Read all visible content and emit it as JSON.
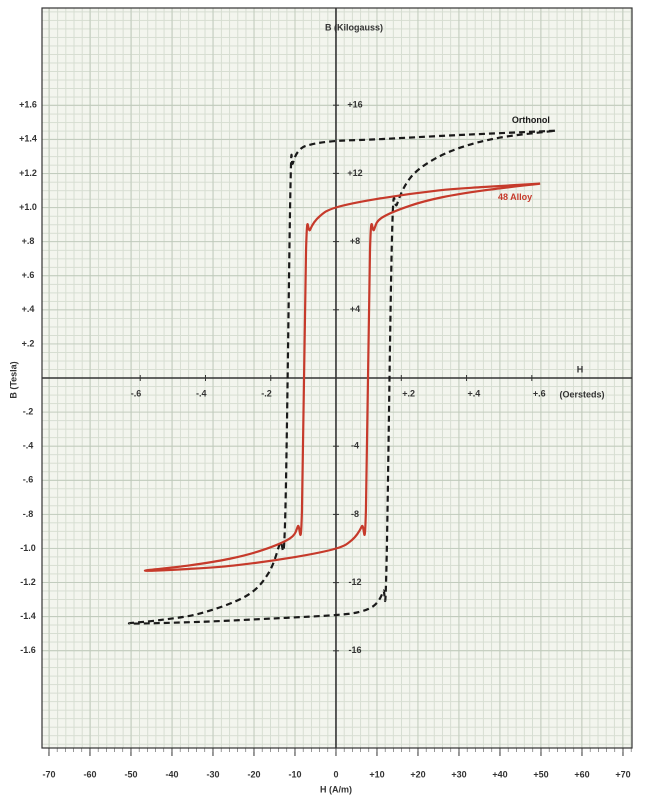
{
  "chart_data": {
    "type": "line",
    "x_label": "H (A/m)",
    "x2_label": "H",
    "x2_unit": "(Oersteds)",
    "y_label": "B (Tesla)",
    "y2_label": "B (Kilogauss)",
    "grid": true,
    "xlim": [
      -71.7,
      72.2
    ],
    "xticks": [
      -70,
      -60,
      -50,
      -40,
      -30,
      -20,
      -10,
      0,
      {
        "value": 10,
        "label": "+10"
      },
      {
        "value": 20,
        "label": "+20"
      },
      {
        "value": 30,
        "label": "+30"
      },
      {
        "value": 40,
        "label": "+40"
      },
      {
        "value": 50,
        "label": "+50"
      },
      {
        "value": 60,
        "label": "+60"
      },
      {
        "value": 70,
        "label": "+70"
      }
    ],
    "x2lim": [
      -0.901,
      0.907
    ],
    "x2ticks": [
      {
        "value": -0.6,
        "label": "-.6"
      },
      {
        "value": -0.4,
        "label": "-.4"
      },
      {
        "value": -0.2,
        "label": "-.2"
      },
      {
        "value": 0.2,
        "label": "+.2"
      },
      {
        "value": 0.4,
        "label": "+.4"
      },
      {
        "value": 0.6,
        "label": "+.6"
      }
    ],
    "ylim": [
      -2.17,
      2.17
    ],
    "yticks": [
      {
        "value": 1.6,
        "label": "+1.6"
      },
      {
        "value": 1.4,
        "label": "+1.4"
      },
      {
        "value": 1.2,
        "label": "+1.2"
      },
      {
        "value": 1.0,
        "label": "+1.0"
      },
      {
        "value": 0.8,
        "label": "+.8"
      },
      {
        "value": 0.6,
        "label": "+.6"
      },
      {
        "value": 0.4,
        "label": "+.4"
      },
      {
        "value": 0.2,
        "label": "+.2"
      },
      {
        "value": -0.2,
        "label": "-.2"
      },
      {
        "value": -0.4,
        "label": "-.4"
      },
      {
        "value": -0.6,
        "label": "-.6"
      },
      {
        "value": -0.8,
        "label": "-.8"
      },
      {
        "value": -1.0,
        "label": "-1.0"
      },
      {
        "value": -1.2,
        "label": "-1.2"
      },
      {
        "value": -1.4,
        "label": "-1.4"
      },
      {
        "value": -1.6,
        "label": "-1.6"
      }
    ],
    "y2lim": [
      -21.7,
      21.7
    ],
    "y2ticks": [
      {
        "value": 16,
        "label": "+16"
      },
      {
        "value": 12,
        "label": "+12"
      },
      {
        "value": 8,
        "label": "+8"
      },
      {
        "value": 4,
        "label": "+4"
      },
      -4,
      -8,
      -12,
      -16
    ],
    "series": [
      {
        "name": "Orthonol",
        "color": "#1a1a1a",
        "line_style": "dashed",
        "x": [
          53.4,
          30,
          10,
          0,
          -6,
          -8.8,
          -10.5,
          -11.1,
          -12.4,
          -13.7,
          -16.6,
          -22,
          -33,
          -43,
          -50.2,
          -33,
          -15,
          0,
          6,
          9.5,
          11.5,
          12.3,
          13.7,
          14.9,
          18,
          23,
          30.2,
          40,
          53.4
        ],
        "values": [
          1.45,
          1.425,
          1.4,
          1.39,
          1.37,
          1.34,
          1.26,
          1.12,
          -0.83,
          -0.97,
          -1.15,
          -1.28,
          -1.38,
          -1.42,
          -1.44,
          -1.43,
          -1.41,
          -1.39,
          -1.37,
          -1.33,
          -1.25,
          -1.12,
          0.86,
          1.02,
          1.17,
          1.27,
          1.35,
          1.41,
          1.45
        ]
      },
      {
        "name": "48 Alloy",
        "color": "#c63a2b",
        "line_style": "solid",
        "x": [
          49.8,
          36,
          25,
          10,
          0,
          -3.9,
          -6.3,
          -7.3,
          -8.3,
          -9.3,
          -11.2,
          -18,
          -25.9,
          -36,
          -46.6,
          -36,
          -25,
          -10,
          0,
          3.9,
          6.3,
          7.3,
          8.3,
          9.3,
          11.2,
          18,
          25.9,
          36,
          49.8
        ],
        "values": [
          1.14,
          1.12,
          1.1,
          1.05,
          1.0,
          0.95,
          0.87,
          0.75,
          -0.78,
          -0.87,
          -0.94,
          -1.01,
          -1.06,
          -1.1,
          -1.13,
          -1.12,
          -1.1,
          -1.05,
          -1.0,
          -0.95,
          -0.87,
          -0.78,
          0.75,
          0.87,
          0.94,
          1.01,
          1.06,
          1.1,
          1.14
        ]
      }
    ]
  }
}
